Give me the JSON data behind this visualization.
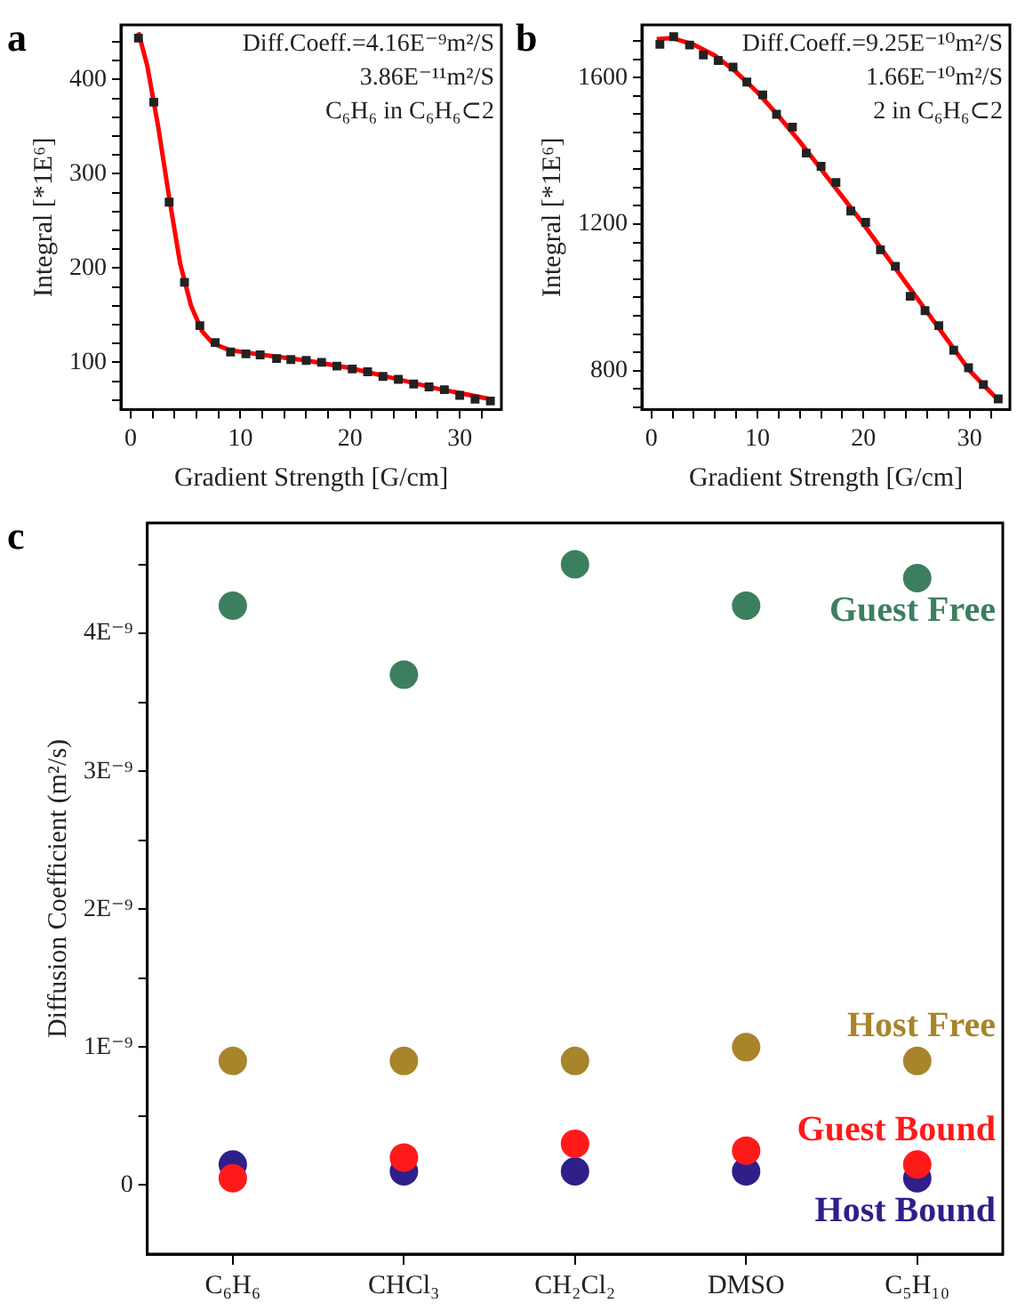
{
  "chart_data": [
    {
      "type": "scatter",
      "title": "a",
      "xlabel": "Gradient Strength [G/cm]",
      "ylabel": "Integral [*1E⁶]",
      "marker": "square",
      "legend": false,
      "grid": false,
      "series": [
        {
          "color": "#222222",
          "x": [
            0.7,
            2.1,
            3.5,
            4.9,
            6.3,
            7.7,
            9.1,
            10.5,
            11.8,
            13.3,
            14.6,
            16.0,
            17.4,
            18.8,
            20.2,
            21.6,
            23.0,
            24.4,
            25.8,
            27.2,
            28.6,
            30.0,
            31.4,
            32.8
          ],
          "values": [
            444,
            376,
            270,
            185,
            139,
            121,
            111,
            109,
            108,
            104,
            103,
            102,
            100,
            96,
            93,
            90,
            85,
            82,
            77,
            74,
            71,
            65,
            61,
            59
          ]
        },
        {
          "type": "line",
          "marker": "none",
          "color": "#ff0000",
          "x": [
            0.7,
            1.5,
            2.5,
            3.5,
            4.5,
            5.5,
            6.5,
            7.5,
            9,
            12,
            16,
            20,
            24,
            28,
            32.8
          ],
          "values": [
            450,
            415,
            350,
            275,
            205,
            160,
            133,
            120,
            113,
            108,
            102,
            94,
            83,
            72,
            61
          ]
        }
      ],
      "xlim": [
        -0.9,
        33.8
      ],
      "xticks": [
        0,
        {
          "value": 2,
          "label": null
        },
        {
          "value": 4,
          "label": null
        },
        {
          "value": 6,
          "label": null
        },
        {
          "value": 8,
          "label": null
        },
        10,
        {
          "value": 12,
          "label": null
        },
        {
          "value": 14,
          "label": null
        },
        {
          "value": 16,
          "label": null
        },
        {
          "value": 18,
          "label": null
        },
        20,
        {
          "value": 22,
          "label": null
        },
        {
          "value": 24,
          "label": null
        },
        {
          "value": 26,
          "label": null
        },
        {
          "value": 28,
          "label": null
        },
        30,
        {
          "value": 32,
          "label": null
        }
      ],
      "ylim": [
        50,
        458
      ],
      "yticks": [
        {
          "value": 60,
          "label": null
        },
        {
          "value": 80,
          "label": null
        },
        100,
        {
          "value": 120,
          "label": null
        },
        {
          "value": 140,
          "label": null
        },
        {
          "value": 160,
          "label": null
        },
        {
          "value": 180,
          "label": null
        },
        200,
        {
          "value": 220,
          "label": null
        },
        {
          "value": 240,
          "label": null
        },
        {
          "value": 260,
          "label": null
        },
        {
          "value": 280,
          "label": null
        },
        300,
        {
          "value": 320,
          "label": null
        },
        {
          "value": 340,
          "label": null
        },
        {
          "value": 360,
          "label": null
        },
        {
          "value": 380,
          "label": null
        },
        400,
        {
          "value": 420,
          "label": null
        },
        {
          "value": 440,
          "label": null
        }
      ],
      "annotations": [
        "Diff.Coeff.=4.16E⁻⁹m²/S",
        "3.86E⁻¹¹m²/S",
        "C₆H₆ in C₆H₆⊂2"
      ]
    },
    {
      "type": "scatter",
      "title": "b",
      "xlabel": "Gradient Strength [G/cm]",
      "ylabel": "Integral [*1E⁶]",
      "marker": "square",
      "legend": false,
      "grid": false,
      "series": [
        {
          "color": "#222222",
          "x": [
            0.8,
            2.1,
            3.6,
            4.9,
            6.3,
            7.7,
            9.0,
            10.5,
            11.8,
            13.3,
            14.6,
            16.0,
            17.4,
            18.8,
            20.2,
            21.6,
            23.0,
            24.4,
            25.8,
            27.1,
            28.5,
            29.9,
            31.3,
            32.7
          ],
          "values": [
            1691,
            1712,
            1689,
            1662,
            1647,
            1629,
            1588,
            1553,
            1500,
            1465,
            1394,
            1358,
            1314,
            1236,
            1205,
            1130,
            1085,
            1003,
            964,
            923,
            856,
            808,
            762,
            723
          ]
        },
        {
          "type": "line",
          "marker": "none",
          "color": "#ff0000",
          "x": [
            0.5,
            2,
            4,
            6,
            8,
            10,
            12,
            14,
            16,
            18,
            20,
            22,
            24,
            26,
            28,
            30,
            32.7
          ],
          "values": [
            1705,
            1708,
            1690,
            1660,
            1615,
            1560,
            1495,
            1425,
            1350,
            1275,
            1200,
            1120,
            1040,
            960,
            880,
            800,
            720
          ]
        }
      ],
      "xlim": [
        -0.9,
        33.8
      ],
      "xticks": [
        0,
        {
          "value": 2,
          "label": null
        },
        {
          "value": 4,
          "label": null
        },
        {
          "value": 6,
          "label": null
        },
        {
          "value": 8,
          "label": null
        },
        10,
        {
          "value": 12,
          "label": null
        },
        {
          "value": 14,
          "label": null
        },
        {
          "value": 16,
          "label": null
        },
        {
          "value": 18,
          "label": null
        },
        20,
        {
          "value": 22,
          "label": null
        },
        {
          "value": 24,
          "label": null
        },
        {
          "value": 26,
          "label": null
        },
        {
          "value": 28,
          "label": null
        },
        30,
        {
          "value": 32,
          "label": null
        }
      ],
      "ylim": [
        694,
        1744
      ],
      "yticks": [
        {
          "value": 700,
          "label": null
        },
        {
          "value": 750,
          "label": null
        },
        800,
        {
          "value": 850,
          "label": null
        },
        {
          "value": 900,
          "label": null
        },
        {
          "value": 950,
          "label": null
        },
        {
          "value": 1000,
          "label": null
        },
        {
          "value": 1050,
          "label": null
        },
        {
          "value": 1100,
          "label": null
        },
        {
          "value": 1150,
          "label": null
        },
        1200,
        {
          "value": 1250,
          "label": null
        },
        {
          "value": 1300,
          "label": null
        },
        {
          "value": 1350,
          "label": null
        },
        {
          "value": 1400,
          "label": null
        },
        {
          "value": 1450,
          "label": null
        },
        {
          "value": 1500,
          "label": null
        },
        {
          "value": 1550,
          "label": null
        },
        1600,
        {
          "value": 1650,
          "label": null
        },
        {
          "value": 1700,
          "label": null
        }
      ],
      "annotations": [
        "Diff.Coeff.=9.25E⁻¹⁰m²/S",
        "1.66E⁻¹⁰m²/S",
        "2 in C₆H₆⊂2"
      ]
    },
    {
      "type": "scatter",
      "title": "c",
      "ylabel": "Diffusion Coefficient (m²/s)",
      "marker": "circle",
      "legend": false,
      "grid": false,
      "categories": [
        "C₆H₆",
        "CHCl₃",
        "CH₂Cl₂",
        "DMSO",
        "C₅H₁₀"
      ],
      "series": [
        {
          "name": "Guest Free",
          "color": "#3c7f5e",
          "values": [
            4.2,
            3.7,
            4.5,
            4.2,
            4.4
          ]
        },
        {
          "name": "Host Free",
          "color": "#a8842a",
          "values": [
            0.9,
            0.9,
            0.9,
            1.0,
            0.9
          ]
        },
        {
          "name": "Guest Bound",
          "color": "#ff1a1a",
          "values": [
            0.05,
            0.2,
            0.3,
            0.25,
            0.15
          ]
        },
        {
          "name": "Host Bound",
          "color": "#2e1f8a",
          "values": [
            0.15,
            0.1,
            0.1,
            0.1,
            0.05
          ]
        }
      ],
      "ylim": [
        -0.5,
        4.8
      ],
      "yticks": [
        0,
        {
          "value": 0.5,
          "label": null
        },
        {
          "value": 1,
          "label": "1E⁻⁹"
        },
        {
          "value": 1.5,
          "label": null
        },
        {
          "value": 2,
          "label": "2E⁻⁹"
        },
        {
          "value": 2.5,
          "label": null
        },
        {
          "value": 3,
          "label": "3E⁻⁹"
        },
        {
          "value": 3.5,
          "label": null
        },
        {
          "value": 4,
          "label": "4E⁻⁹"
        },
        {
          "value": 4.5,
          "label": null
        }
      ]
    }
  ]
}
